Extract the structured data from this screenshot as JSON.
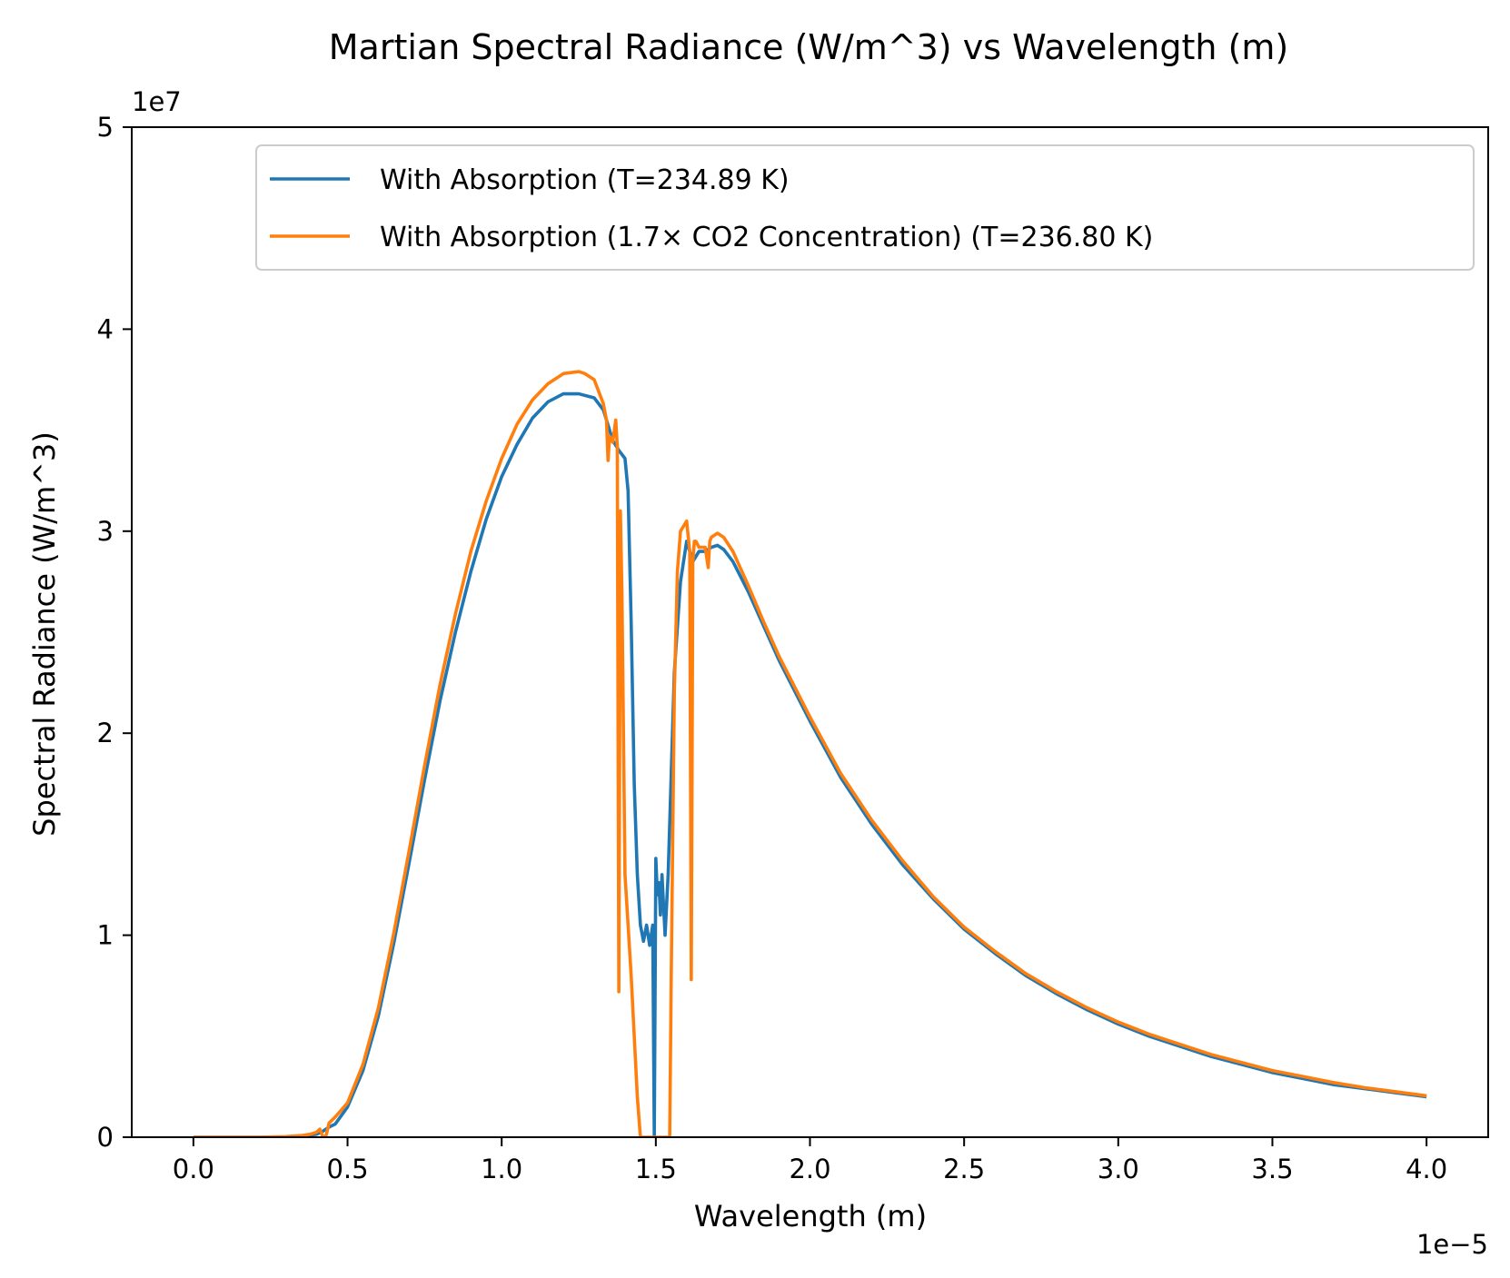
{
  "chart_data": {
    "type": "line",
    "title": "Martian Spectral Radiance (W/m^3) vs Wavelength (m)",
    "xlabel": "Wavelength (m)",
    "ylabel": "Spectral Radiance (W/m^3)",
    "x_offset_text": "1e−5",
    "y_offset_text": "1e7",
    "x_scale": 1e-05,
    "y_scale": 10000000.0,
    "xlim": [
      -2e-06,
      4.2e-05
    ],
    "ylim": [
      0,
      50000000.0
    ],
    "x_ticks": [
      0,
      5e-06,
      1e-05,
      1.5e-05,
      2e-05,
      2.5e-05,
      3e-05,
      3.5e-05,
      4e-05
    ],
    "x_tick_labels": [
      "0.0",
      "0.5",
      "1.0",
      "1.5",
      "2.0",
      "2.5",
      "3.0",
      "3.5",
      "4.0"
    ],
    "y_ticks": [
      0,
      10000000.0,
      20000000.0,
      30000000.0,
      40000000.0,
      50000000.0
    ],
    "y_tick_labels": [
      "0",
      "1",
      "2",
      "3",
      "4",
      "5"
    ],
    "grid": false,
    "legend_position": "top-right",
    "series": [
      {
        "name": "With Absorption (T=234.89 K)",
        "color": "#1f77b4",
        "x_unit": 1e-05,
        "y_unit": 10000000.0,
        "x": [
          0.0,
          0.1,
          0.2,
          0.3,
          0.35,
          0.4,
          0.42,
          0.44,
          0.46,
          0.5,
          0.55,
          0.6,
          0.65,
          0.7,
          0.75,
          0.8,
          0.85,
          0.9,
          0.95,
          1.0,
          1.05,
          1.1,
          1.15,
          1.2,
          1.25,
          1.3,
          1.33,
          1.36,
          1.38,
          1.4,
          1.41,
          1.42,
          1.43,
          1.44,
          1.45,
          1.46,
          1.47,
          1.48,
          1.49,
          1.495,
          1.5,
          1.505,
          1.51,
          1.515,
          1.52,
          1.53,
          1.54,
          1.55,
          1.56,
          1.58,
          1.6,
          1.62,
          1.64,
          1.66,
          1.68,
          1.7,
          1.72,
          1.75,
          1.8,
          1.85,
          1.9,
          2.0,
          2.1,
          2.2,
          2.3,
          2.4,
          2.5,
          2.6,
          2.7,
          2.8,
          2.9,
          3.0,
          3.1,
          3.2,
          3.3,
          3.4,
          3.5,
          3.6,
          3.7,
          3.8,
          3.9,
          4.0
        ],
        "y": [
          0.0,
          0.0,
          0.0,
          0.0,
          0.005,
          0.015,
          0.03,
          0.05,
          0.065,
          0.15,
          0.33,
          0.6,
          0.96,
          1.36,
          1.77,
          2.16,
          2.5,
          2.8,
          3.06,
          3.27,
          3.43,
          3.56,
          3.64,
          3.68,
          3.68,
          3.66,
          3.6,
          3.45,
          3.4,
          3.36,
          3.2,
          2.55,
          1.75,
          1.3,
          1.05,
          0.97,
          1.05,
          0.95,
          1.05,
          0.0,
          1.38,
          1.2,
          1.26,
          1.1,
          1.3,
          1.0,
          1.3,
          1.8,
          2.3,
          2.75,
          2.95,
          2.85,
          2.9,
          2.9,
          2.92,
          2.93,
          2.91,
          2.85,
          2.7,
          2.53,
          2.36,
          2.06,
          1.78,
          1.55,
          1.35,
          1.18,
          1.03,
          0.91,
          0.8,
          0.71,
          0.63,
          0.56,
          0.5,
          0.45,
          0.4,
          0.36,
          0.32,
          0.29,
          0.26,
          0.24,
          0.22,
          0.2
        ]
      },
      {
        "name": "With Absorption (1.7× CO2 Concentration) (T=236.80 K)",
        "color": "#ff7f0e",
        "x_unit": 1e-05,
        "y_unit": 10000000.0,
        "x": [
          0.0,
          0.1,
          0.2,
          0.3,
          0.35,
          0.38,
          0.4,
          0.41,
          0.42,
          0.43,
          0.44,
          0.46,
          0.5,
          0.55,
          0.6,
          0.65,
          0.7,
          0.75,
          0.8,
          0.85,
          0.9,
          0.95,
          1.0,
          1.05,
          1.1,
          1.15,
          1.2,
          1.25,
          1.27,
          1.3,
          1.33,
          1.34,
          1.345,
          1.35,
          1.36,
          1.37,
          1.375,
          1.38,
          1.385,
          1.39,
          1.395,
          1.4,
          1.42,
          1.44,
          1.45,
          1.46,
          1.47,
          1.5,
          1.53,
          1.54,
          1.545,
          1.55,
          1.56,
          1.57,
          1.58,
          1.6,
          1.61,
          1.615,
          1.62,
          1.625,
          1.63,
          1.64,
          1.66,
          1.67,
          1.675,
          1.68,
          1.7,
          1.72,
          1.75,
          1.8,
          1.85,
          1.9,
          2.0,
          2.1,
          2.2,
          2.3,
          2.4,
          2.5,
          2.6,
          2.7,
          2.8,
          2.9,
          3.0,
          3.1,
          3.2,
          3.3,
          3.4,
          3.5,
          3.6,
          3.7,
          3.8,
          3.9,
          4.0
        ],
        "y": [
          0.0,
          0.0,
          0.0,
          0.003,
          0.008,
          0.015,
          0.025,
          0.04,
          0.002,
          0.006,
          0.07,
          0.1,
          0.17,
          0.36,
          0.64,
          1.01,
          1.42,
          1.84,
          2.24,
          2.59,
          2.9,
          3.15,
          3.36,
          3.53,
          3.65,
          3.73,
          3.78,
          3.79,
          3.78,
          3.75,
          3.63,
          3.55,
          3.35,
          3.47,
          3.44,
          3.55,
          3.42,
          0.72,
          3.1,
          2.7,
          2.0,
          1.3,
          0.8,
          0.2,
          0.0,
          0.0,
          0.0,
          0.0,
          0.0,
          0.0,
          0.0,
          0.8,
          2.2,
          2.8,
          3.0,
          3.05,
          2.9,
          0.78,
          2.85,
          2.95,
          2.95,
          2.92,
          2.92,
          2.82,
          2.95,
          2.97,
          2.99,
          2.97,
          2.9,
          2.73,
          2.55,
          2.38,
          2.08,
          1.8,
          1.57,
          1.37,
          1.19,
          1.04,
          0.92,
          0.81,
          0.72,
          0.64,
          0.57,
          0.51,
          0.46,
          0.41,
          0.37,
          0.33,
          0.3,
          0.27,
          0.245,
          0.225,
          0.205
        ]
      }
    ]
  }
}
